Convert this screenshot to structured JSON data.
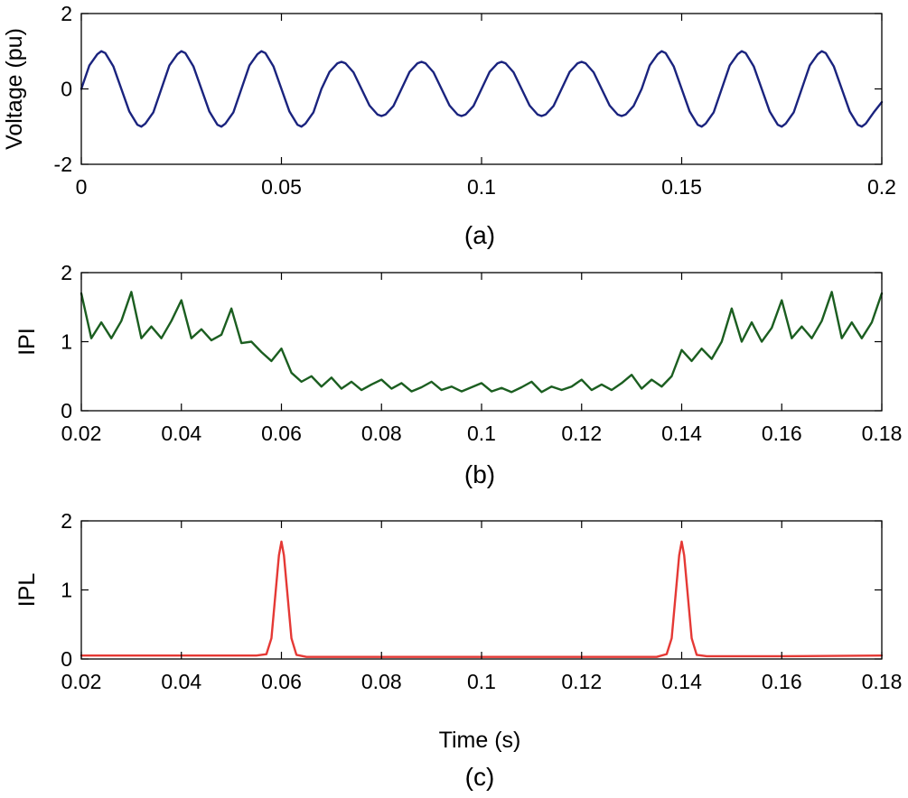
{
  "chart_data": [
    {
      "type": "line",
      "caption": "(a)",
      "xlabel": "",
      "ylabel": "Voltage (pu)",
      "xlim": [
        0,
        0.2
      ],
      "ylim": [
        -2,
        2
      ],
      "xticks": [
        0,
        0.05,
        0.1,
        0.15,
        0.2
      ],
      "xtick_labels": [
        "0",
        "0.05",
        "0.1",
        "0.15",
        "0.2"
      ],
      "yticks": [
        -2,
        0,
        2
      ],
      "ytick_labels": [
        "-2",
        "0",
        "2"
      ],
      "grid": false,
      "series": [
        {
          "name": "Voltage",
          "color": "#1a237e",
          "x": [
            0,
            0.002,
            0.004,
            0.005,
            0.006,
            0.008,
            0.01,
            0.012,
            0.014,
            0.015,
            0.016,
            0.018,
            0.02,
            0.022,
            0.024,
            0.025,
            0.026,
            0.028,
            0.03,
            0.032,
            0.034,
            0.035,
            0.036,
            0.038,
            0.04,
            0.042,
            0.044,
            0.045,
            0.046,
            0.048,
            0.05,
            0.052,
            0.054,
            0.055,
            0.056,
            0.058,
            0.06,
            0.062,
            0.064,
            0.065,
            0.066,
            0.068,
            0.07,
            0.072,
            0.074,
            0.075,
            0.076,
            0.078,
            0.08,
            0.082,
            0.084,
            0.085,
            0.086,
            0.088,
            0.09,
            0.092,
            0.094,
            0.095,
            0.096,
            0.098,
            0.1,
            0.102,
            0.104,
            0.105,
            0.106,
            0.108,
            0.11,
            0.112,
            0.114,
            0.115,
            0.116,
            0.118,
            0.12,
            0.122,
            0.124,
            0.125,
            0.126,
            0.128,
            0.13,
            0.132,
            0.134,
            0.135,
            0.136,
            0.138,
            0.14,
            0.142,
            0.144,
            0.145,
            0.146,
            0.148,
            0.15,
            0.152,
            0.154,
            0.155,
            0.156,
            0.158,
            0.16,
            0.162,
            0.164,
            0.165,
            0.166,
            0.168,
            0.17,
            0.172,
            0.174,
            0.175,
            0.176,
            0.178,
            0.18,
            0.182,
            0.184,
            0.185,
            0.186,
            0.188,
            0.19,
            0.192,
            0.194,
            0.195,
            0.196,
            0.198,
            0.2
          ],
          "values": [
            0,
            0.62,
            0.92,
            1.0,
            0.95,
            0.6,
            0.0,
            -0.6,
            -0.95,
            -1.0,
            -0.92,
            -0.62,
            0,
            0.62,
            0.92,
            1.0,
            0.95,
            0.6,
            0.0,
            -0.6,
            -0.95,
            -1.0,
            -0.92,
            -0.62,
            0,
            0.62,
            0.92,
            1.0,
            0.95,
            0.6,
            0.0,
            -0.6,
            -0.95,
            -1.0,
            -0.92,
            -0.62,
            0,
            0.45,
            0.68,
            0.72,
            0.68,
            0.44,
            0.0,
            -0.44,
            -0.68,
            -0.72,
            -0.68,
            -0.45,
            0,
            0.45,
            0.68,
            0.72,
            0.68,
            0.44,
            0.0,
            -0.44,
            -0.68,
            -0.72,
            -0.68,
            -0.45,
            0,
            0.45,
            0.68,
            0.72,
            0.68,
            0.44,
            0.0,
            -0.44,
            -0.68,
            -0.72,
            -0.68,
            -0.45,
            0,
            0.45,
            0.68,
            0.72,
            0.68,
            0.44,
            0.0,
            -0.44,
            -0.68,
            -0.72,
            -0.68,
            -0.45,
            0,
            0.62,
            0.92,
            1.0,
            0.95,
            0.6,
            0.0,
            -0.6,
            -0.95,
            -1.0,
            -0.92,
            -0.62,
            0,
            0.62,
            0.92,
            1.0,
            0.95,
            0.6,
            0.0,
            -0.6,
            -0.95,
            -1.0,
            -0.92,
            -0.62,
            0,
            0.62,
            0.92,
            1.0,
            0.95,
            0.6,
            0.0,
            -0.6,
            -0.95,
            -1.0,
            -0.92,
            -0.62,
            -0.35
          ]
        }
      ]
    },
    {
      "type": "line",
      "caption": "(b)",
      "xlabel": "",
      "ylabel": "IPI",
      "xlim": [
        0.02,
        0.18
      ],
      "ylim": [
        0,
        2
      ],
      "xticks": [
        0.02,
        0.04,
        0.06,
        0.08,
        0.1,
        0.12,
        0.14,
        0.16,
        0.18
      ],
      "xtick_labels": [
        "0.02",
        "0.04",
        "0.06",
        "0.08",
        "0.1",
        "0.12",
        "0.14",
        "0.16",
        "0.18"
      ],
      "yticks": [
        0,
        1,
        2
      ],
      "ytick_labels": [
        "0",
        "1",
        "2"
      ],
      "grid": false,
      "series": [
        {
          "name": "IPI",
          "color": "#1b5e20",
          "x": [
            0.02,
            0.022,
            0.024,
            0.026,
            0.028,
            0.03,
            0.032,
            0.034,
            0.036,
            0.038,
            0.04,
            0.042,
            0.044,
            0.046,
            0.048,
            0.05,
            0.052,
            0.054,
            0.056,
            0.058,
            0.06,
            0.062,
            0.064,
            0.066,
            0.068,
            0.07,
            0.072,
            0.074,
            0.076,
            0.078,
            0.08,
            0.082,
            0.084,
            0.086,
            0.088,
            0.09,
            0.092,
            0.094,
            0.096,
            0.098,
            0.1,
            0.102,
            0.104,
            0.106,
            0.108,
            0.11,
            0.112,
            0.114,
            0.116,
            0.118,
            0.12,
            0.122,
            0.124,
            0.126,
            0.128,
            0.13,
            0.132,
            0.134,
            0.136,
            0.138,
            0.14,
            0.142,
            0.144,
            0.146,
            0.148,
            0.15,
            0.152,
            0.154,
            0.156,
            0.158,
            0.16,
            0.162,
            0.164,
            0.166,
            0.168,
            0.17,
            0.172,
            0.174,
            0.176,
            0.178,
            0.18
          ],
          "values": [
            1.7,
            1.05,
            1.28,
            1.05,
            1.3,
            1.72,
            1.05,
            1.22,
            1.05,
            1.3,
            1.6,
            1.05,
            1.18,
            1.02,
            1.1,
            1.48,
            0.98,
            1.0,
            0.85,
            0.72,
            0.9,
            0.55,
            0.42,
            0.5,
            0.35,
            0.48,
            0.32,
            0.42,
            0.3,
            0.38,
            0.45,
            0.32,
            0.4,
            0.28,
            0.34,
            0.42,
            0.3,
            0.35,
            0.28,
            0.34,
            0.4,
            0.28,
            0.33,
            0.27,
            0.34,
            0.42,
            0.27,
            0.35,
            0.3,
            0.35,
            0.45,
            0.3,
            0.38,
            0.3,
            0.4,
            0.52,
            0.32,
            0.45,
            0.35,
            0.5,
            0.88,
            0.72,
            0.9,
            0.75,
            1.0,
            1.48,
            1.0,
            1.28,
            1.0,
            1.2,
            1.6,
            1.05,
            1.22,
            1.05,
            1.3,
            1.72,
            1.05,
            1.28,
            1.05,
            1.28,
            1.7
          ]
        }
      ]
    },
    {
      "type": "line",
      "caption": "(c)",
      "xlabel": "Time (s)",
      "ylabel": "IPL",
      "xlim": [
        0.02,
        0.18
      ],
      "ylim": [
        0,
        2
      ],
      "xticks": [
        0.02,
        0.04,
        0.06,
        0.08,
        0.1,
        0.12,
        0.14,
        0.16,
        0.18
      ],
      "xtick_labels": [
        "0.02",
        "0.04",
        "0.06",
        "0.08",
        "0.1",
        "0.12",
        "0.14",
        "0.16",
        "0.18"
      ],
      "yticks": [
        0,
        1,
        2
      ],
      "ytick_labels": [
        "0",
        "1",
        "2"
      ],
      "grid": false,
      "series": [
        {
          "name": "IPL",
          "color": "#e53935",
          "x": [
            0.02,
            0.04,
            0.055,
            0.057,
            0.058,
            0.059,
            0.0595,
            0.06,
            0.0605,
            0.061,
            0.062,
            0.063,
            0.065,
            0.08,
            0.1,
            0.12,
            0.135,
            0.137,
            0.138,
            0.139,
            0.1395,
            0.14,
            0.1405,
            0.141,
            0.142,
            0.143,
            0.145,
            0.16,
            0.18
          ],
          "values": [
            0.05,
            0.05,
            0.05,
            0.07,
            0.3,
            1.1,
            1.5,
            1.7,
            1.5,
            1.1,
            0.3,
            0.06,
            0.03,
            0.03,
            0.03,
            0.03,
            0.03,
            0.07,
            0.3,
            1.1,
            1.5,
            1.7,
            1.5,
            1.1,
            0.3,
            0.06,
            0.04,
            0.04,
            0.05
          ]
        }
      ]
    }
  ]
}
